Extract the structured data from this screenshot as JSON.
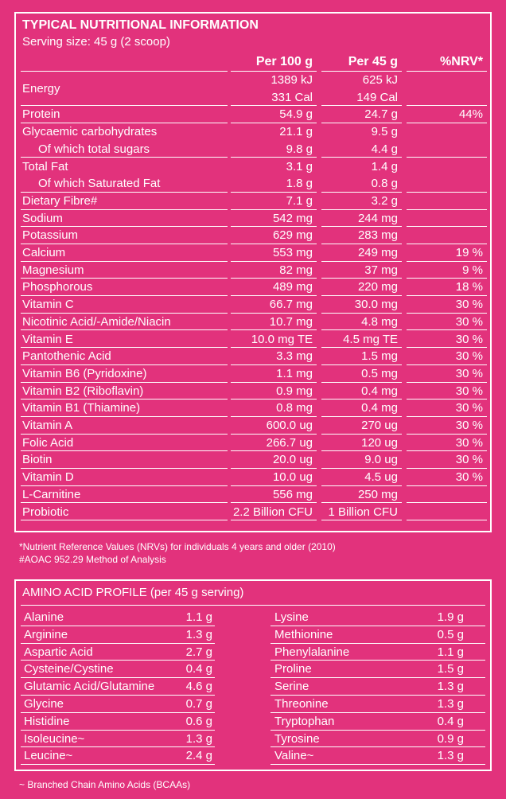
{
  "header": {
    "title": "TYPICAL NUTRITIONAL INFORMATION",
    "serving": "Serving size: 45 g (2 scoop)"
  },
  "nutrition": {
    "columns": [
      "Per 100 g",
      "Per 45 g",
      "%NRV*"
    ],
    "rows": [
      {
        "label": "Energy",
        "per_100g": [
          "1389 kJ",
          "331 Cal"
        ],
        "per_45g": [
          "625 kJ",
          "149 Cal"
        ]
      },
      {
        "label": "Protein",
        "per_100g": "54.9 g",
        "per_45g": "24.7 g",
        "nrv": "44%"
      },
      {
        "label": "Glycaemic carbohydrates",
        "per_100g": "21.1 g",
        "per_45g": "9.5 g",
        "sub": {
          "label": "Of which total sugars",
          "per_100g": "9.8 g",
          "per_45g": "4.4 g"
        }
      },
      {
        "label": "Total Fat",
        "per_100g": "3.1 g",
        "per_45g": "1.4 g",
        "sub": {
          "label": "Of which Saturated Fat",
          "per_100g": "1.8 g",
          "per_45g": "0.8 g"
        }
      },
      {
        "label": "Dietary Fibre#",
        "per_100g": "7.1 g",
        "per_45g": "3.2 g"
      },
      {
        "label": "Sodium",
        "per_100g": "542 mg",
        "per_45g": "244 mg"
      },
      {
        "label": "Potassium",
        "per_100g": "629 mg",
        "per_45g": "283 mg"
      },
      {
        "label": "Calcium",
        "per_100g": "553 mg",
        "per_45g": "249 mg",
        "nrv": "19 %"
      },
      {
        "label": "Magnesium",
        "per_100g": "82 mg",
        "per_45g": "37 mg",
        "nrv": "9 %"
      },
      {
        "label": "Phosphorous",
        "per_100g": "489 mg",
        "per_45g": "220 mg",
        "nrv": "18 %"
      },
      {
        "label": "Vitamin C",
        "per_100g": "66.7 mg",
        "per_45g": "30.0 mg",
        "nrv": "30 %"
      },
      {
        "label": "Nicotinic Acid/-Amide/Niacin",
        "per_100g": "10.7 mg",
        "per_45g": "4.8 mg",
        "nrv": "30 %"
      },
      {
        "label": "Vitamin E",
        "per_100g": "10.0 mg TE",
        "per_45g": "4.5 mg TE",
        "nrv": "30 %"
      },
      {
        "label": "Pantothenic Acid",
        "per_100g": "3.3 mg",
        "per_45g": "1.5 mg",
        "nrv": "30 %"
      },
      {
        "label": "Vitamin B6 (Pyridoxine)",
        "per_100g": "1.1 mg",
        "per_45g": "0.5 mg",
        "nrv": "30 %"
      },
      {
        "label": "Vitamin B2 (Riboflavin)",
        "per_100g": "0.9 mg",
        "per_45g": "0.4 mg",
        "nrv": "30 %"
      },
      {
        "label": "Vitamin B1 (Thiamine)",
        "per_100g": "0.8 mg",
        "per_45g": "0.4 mg",
        "nrv": "30 %"
      },
      {
        "label": "Vitamin A",
        "per_100g": "600.0 ug",
        "per_45g": "270 ug",
        "nrv": "30 %"
      },
      {
        "label": "Folic Acid",
        "per_100g": "266.7 ug",
        "per_45g": "120 ug",
        "nrv": "30 %"
      },
      {
        "label": "Biotin",
        "per_100g": "20.0 ug",
        "per_45g": "9.0 ug",
        "nrv": "30 %"
      },
      {
        "label": "Vitamin D",
        "per_100g": "10.0 ug",
        "per_45g": "4.5 ug",
        "nrv": "30 %"
      },
      {
        "label": "L-Carnitine",
        "per_100g": "556 mg",
        "per_45g": "250 mg"
      },
      {
        "label": "Probiotic",
        "per_100g": "2.2 Billion CFU",
        "per_45g": "1 Billion CFU"
      }
    ]
  },
  "footnotes": [
    "*Nutrient Reference Values (NRVs) for individuals 4 years and older (2010)",
    "#AOAC 952.29 Method of Analysis"
  ],
  "amino": {
    "title": "AMINO ACID PROFILE (per 45 g serving)",
    "rows": [
      [
        "Alanine",
        "1.1 g",
        "Lysine",
        "1.9 g"
      ],
      [
        "Arginine",
        "1.3 g",
        "Methionine",
        "0.5 g"
      ],
      [
        "Aspartic Acid",
        "2.7 g",
        "Phenylalanine",
        "1.1 g"
      ],
      [
        "Cysteine/Cystine",
        "0.4 g",
        "Proline",
        "1.5 g"
      ],
      [
        "Glutamic Acid/Glutamine",
        "4.6 g",
        "Serine",
        "1.3 g"
      ],
      [
        "Glycine",
        "0.7 g",
        "Threonine",
        "1.3 g"
      ],
      [
        "Histidine",
        "0.6 g",
        "Tryptophan",
        "0.4 g"
      ],
      [
        "Isoleucine~",
        "1.3 g",
        "Tyrosine",
        "0.9 g"
      ],
      [
        "Leucine~",
        "2.4 g",
        "Valine~",
        "1.3 g"
      ]
    ]
  },
  "bcaa_note": "~ Branched Chain Amino Acids (BCAAs)"
}
